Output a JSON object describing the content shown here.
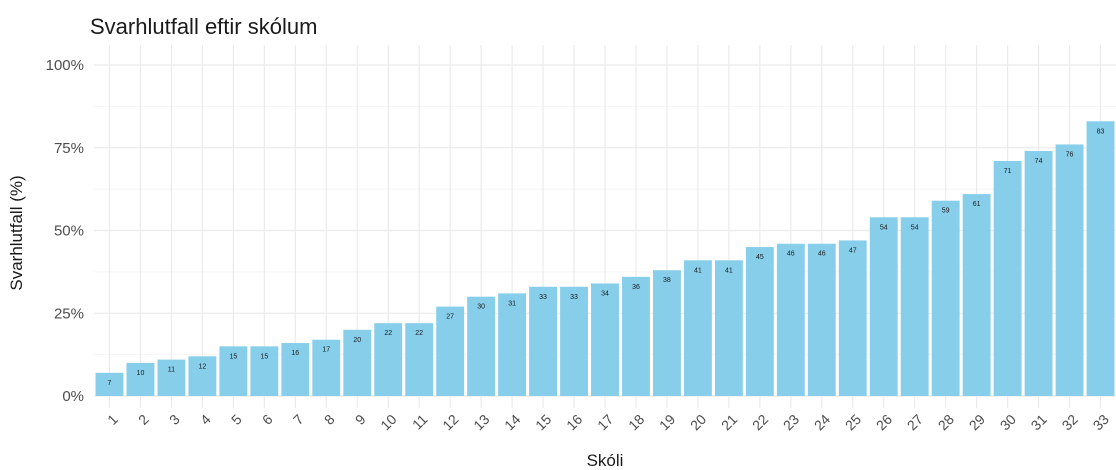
{
  "chart_data": {
    "type": "bar",
    "title": "Svarhlutfall eftir skólum",
    "xlabel": "Skóli",
    "ylabel": "Svarhlutfall (%)",
    "categories": [
      "1",
      "2",
      "3",
      "4",
      "5",
      "6",
      "7",
      "8",
      "9",
      "10",
      "11",
      "12",
      "13",
      "14",
      "15",
      "16",
      "17",
      "18",
      "19",
      "20",
      "21",
      "22",
      "23",
      "24",
      "25",
      "26",
      "27",
      "28",
      "29",
      "30",
      "31",
      "32",
      "33"
    ],
    "values": [
      7,
      10,
      11,
      12,
      15,
      15,
      16,
      17,
      20,
      22,
      22,
      27,
      30,
      31,
      33,
      33,
      34,
      36,
      38,
      41,
      41,
      45,
      46,
      46,
      47,
      54,
      54,
      59,
      61,
      71,
      74,
      76,
      83
    ],
    "data_labels": [
      "7",
      "10",
      "11",
      "12",
      "15",
      "15",
      "16",
      "17",
      "20",
      "22",
      "22",
      "27",
      "30",
      "31",
      "33",
      "33",
      "34",
      "36",
      "38",
      "41",
      "41",
      "45",
      "46",
      "46",
      "47",
      "54",
      "54",
      "59",
      "61",
      "71",
      "74",
      "76",
      "83"
    ],
    "ylim": [
      0,
      100
    ],
    "yticks": [
      0,
      25,
      50,
      75,
      100
    ],
    "ytick_labels": [
      "0%",
      "25%",
      "50%",
      "75%",
      "100%"
    ],
    "grid": true,
    "bar_color": "#87CEEB"
  }
}
